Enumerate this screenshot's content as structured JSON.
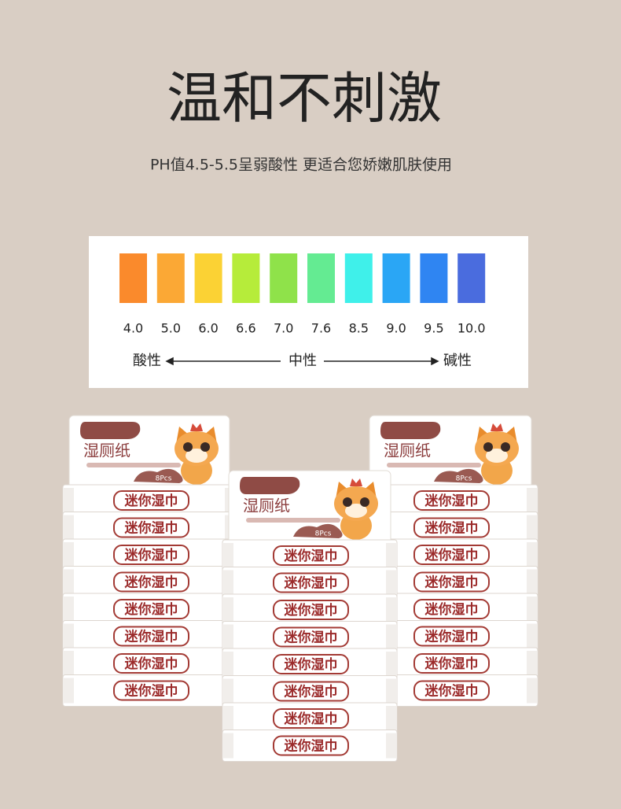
{
  "header": {
    "title": "温和不刺激",
    "subtitle": "PH值4.5-5.5呈弱酸性 更适合您娇嫩肌肤使用"
  },
  "ph_scale": {
    "swatches": [
      {
        "label": "4.0",
        "color": "#fa8a2c"
      },
      {
        "label": "5.0",
        "color": "#fba835"
      },
      {
        "label": "6.0",
        "color": "#fbd234"
      },
      {
        "label": "6.6",
        "color": "#b6ec3a"
      },
      {
        "label": "7.0",
        "color": "#8fe24a"
      },
      {
        "label": "7.6",
        "color": "#64eb92"
      },
      {
        "label": "8.5",
        "color": "#3ff0ea"
      },
      {
        "label": "9.0",
        "color": "#2aa6f5"
      },
      {
        "label": "9.5",
        "color": "#2f85f2"
      },
      {
        "label": "10.0",
        "color": "#4a6cde"
      }
    ],
    "acid": "酸性",
    "neutral": "中性",
    "alkaline": "碱性"
  },
  "product": {
    "name": "湿厕纸",
    "count": "8Pcs",
    "strip_label": "迷你湿巾"
  }
}
